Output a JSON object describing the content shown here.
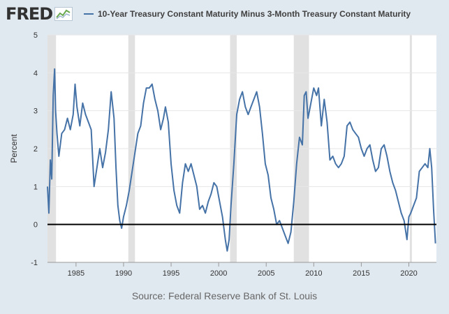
{
  "header": {
    "logo_text": "FRED",
    "logo_icon": "line-chart-icon",
    "legend_label": "10-Year Treasury Constant Maturity Minus 3-Month Treasury Constant Maturity"
  },
  "footer": {
    "source": "Source: Federal Reserve Bank of St. Louis"
  },
  "colors": {
    "series": "#4572a7",
    "background": "#e1e9f0",
    "plot_background": "#ffffff",
    "recession_band": "#e1e1e1",
    "zero_line": "#000000"
  },
  "chart_data": {
    "type": "line",
    "title": "",
    "xlabel": "",
    "ylabel": "Percent",
    "xlim": [
      1982.0,
      2022.9
    ],
    "ylim": [
      -1,
      5
    ],
    "y_ticks": [
      -1,
      0,
      1,
      2,
      3,
      4,
      5
    ],
    "x_ticks": [
      1985,
      1990,
      1995,
      2000,
      2005,
      2010,
      2015,
      2020
    ],
    "grid": "horizontal",
    "legend_position": "top",
    "reference_line": 0,
    "recessions": [
      [
        1982.0,
        1982.9
      ],
      [
        1990.5,
        1991.2
      ],
      [
        2001.2,
        2001.9
      ],
      [
        2007.9,
        2009.5
      ],
      [
        2020.1,
        2020.3
      ]
    ],
    "series": [
      {
        "name": "10-Year Treasury Constant Maturity Minus 3-Month Treasury Constant Maturity",
        "x": [
          1982.0,
          1982.15,
          1982.3,
          1982.45,
          1982.6,
          1982.75,
          1982.85,
          1983.0,
          1983.2,
          1983.5,
          1983.8,
          1984.1,
          1984.4,
          1984.7,
          1984.9,
          1985.1,
          1985.4,
          1985.7,
          1986.0,
          1986.3,
          1986.6,
          1986.9,
          1987.2,
          1987.5,
          1987.8,
          1988.1,
          1988.4,
          1988.7,
          1989.0,
          1989.2,
          1989.4,
          1989.6,
          1989.8,
          1990.0,
          1990.3,
          1990.6,
          1990.9,
          1991.2,
          1991.5,
          1991.8,
          1992.1,
          1992.4,
          1992.7,
          1993.0,
          1993.3,
          1993.6,
          1993.9,
          1994.2,
          1994.4,
          1994.7,
          1995.0,
          1995.3,
          1995.6,
          1995.9,
          1996.2,
          1996.5,
          1996.8,
          1997.1,
          1997.4,
          1997.7,
          1998.0,
          1998.3,
          1998.6,
          1998.9,
          1999.2,
          1999.5,
          1999.8,
          2000.1,
          2000.4,
          2000.7,
          2000.9,
          2001.1,
          2001.3,
          2001.6,
          2001.9,
          2002.2,
          2002.5,
          2002.8,
          2003.1,
          2003.4,
          2003.7,
          2004.0,
          2004.3,
          2004.6,
          2004.9,
          2005.2,
          2005.5,
          2005.8,
          2006.1,
          2006.4,
          2006.7,
          2007.0,
          2007.3,
          2007.6,
          2007.9,
          2008.2,
          2008.5,
          2008.8,
          2009.0,
          2009.2,
          2009.4,
          2009.7,
          2010.0,
          2010.3,
          2010.5,
          2010.8,
          2011.1,
          2011.4,
          2011.7,
          2012.0,
          2012.3,
          2012.6,
          2012.9,
          2013.2,
          2013.5,
          2013.8,
          2014.1,
          2014.4,
          2014.7,
          2015.0,
          2015.3,
          2015.6,
          2015.9,
          2016.2,
          2016.5,
          2016.8,
          2017.1,
          2017.4,
          2017.7,
          2018.0,
          2018.3,
          2018.6,
          2018.9,
          2019.2,
          2019.5,
          2019.8,
          2020.0,
          2020.2,
          2020.5,
          2020.8,
          2021.1,
          2021.4,
          2021.7,
          2022.0,
          2022.2,
          2022.4,
          2022.6,
          2022.8
        ],
        "values": [
          1.0,
          0.3,
          1.7,
          1.2,
          3.4,
          4.1,
          3.0,
          2.4,
          1.8,
          2.4,
          2.5,
          2.8,
          2.5,
          2.9,
          3.7,
          3.1,
          2.6,
          3.2,
          2.9,
          2.7,
          2.5,
          1.0,
          1.5,
          2.0,
          1.5,
          1.9,
          2.5,
          3.5,
          2.8,
          1.5,
          0.5,
          0.1,
          -0.1,
          0.2,
          0.5,
          0.9,
          1.4,
          1.9,
          2.4,
          2.6,
          3.2,
          3.6,
          3.6,
          3.7,
          3.3,
          3.0,
          2.5,
          2.8,
          3.1,
          2.7,
          1.6,
          0.9,
          0.5,
          0.3,
          1.1,
          1.6,
          1.4,
          1.6,
          1.3,
          1.0,
          0.4,
          0.5,
          0.3,
          0.6,
          0.8,
          1.1,
          1.0,
          0.6,
          0.2,
          -0.4,
          -0.7,
          -0.4,
          0.5,
          1.6,
          2.9,
          3.3,
          3.5,
          3.1,
          2.9,
          3.1,
          3.3,
          3.5,
          3.1,
          2.4,
          1.6,
          1.3,
          0.7,
          0.4,
          0.0,
          0.1,
          -0.1,
          -0.3,
          -0.5,
          -0.2,
          0.6,
          1.6,
          2.3,
          2.1,
          3.4,
          3.5,
          2.8,
          3.2,
          3.6,
          3.4,
          3.6,
          2.6,
          3.3,
          2.7,
          1.7,
          1.8,
          1.6,
          1.5,
          1.6,
          1.8,
          2.6,
          2.7,
          2.5,
          2.4,
          2.3,
          2.0,
          1.8,
          2.0,
          2.1,
          1.7,
          1.4,
          1.5,
          2.0,
          2.1,
          1.8,
          1.4,
          1.1,
          0.9,
          0.6,
          0.3,
          0.1,
          -0.4,
          0.2,
          0.3,
          0.5,
          0.7,
          1.4,
          1.5,
          1.6,
          1.5,
          2.0,
          1.5,
          0.4,
          -0.5
        ]
      }
    ]
  }
}
